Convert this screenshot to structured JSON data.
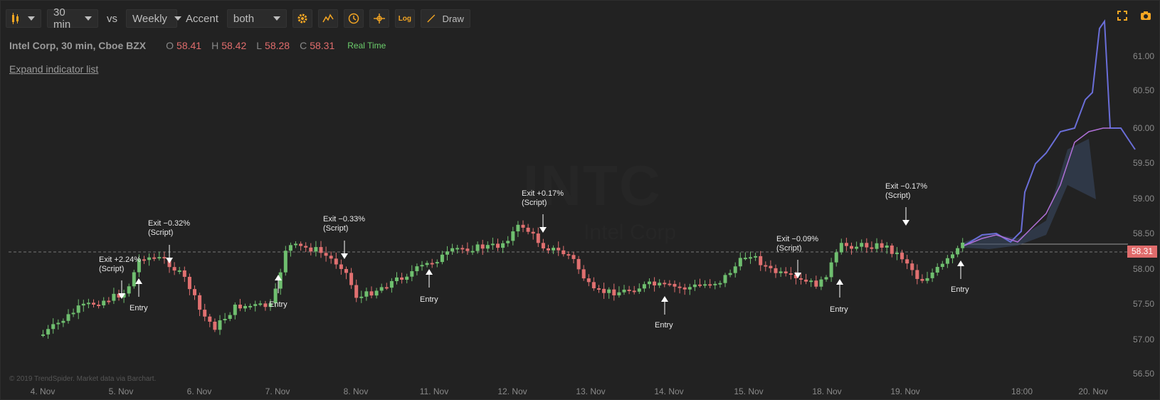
{
  "toolbar": {
    "interval": "30 min",
    "vs_label": "vs",
    "compare": "Weekly",
    "accent_label": "Accent",
    "accent_value": "both",
    "draw_label": "Draw",
    "log_label": "Log"
  },
  "legend": {
    "symbol": "Intel Corp, 30 min, Cboe BZX",
    "o_label": "O",
    "o": "58.41",
    "h_label": "H",
    "h": "58.42",
    "l_label": "L",
    "l": "58.28",
    "c_label": "C",
    "c": "58.31",
    "realtime": "Real Time"
  },
  "expand_label": "Expand indicator list",
  "watermark": {
    "ticker": "INTC",
    "name": "Intel Corp"
  },
  "copyright": "© 2019 TrendSpider. Market data via Barchart.",
  "current_price": "58.31",
  "colors": {
    "up": "#6fbf6f",
    "down": "#e07070",
    "forecast": "#6a6ed8",
    "forecast2": "#b070d8",
    "accent": "#f5a623"
  },
  "annotations": [
    {
      "label": "Exit +2.24%",
      "sub": "(Script)"
    },
    {
      "label": "Exit −0.32%",
      "sub": "(Script)"
    },
    {
      "label": "Exit −0.33%",
      "sub": "(Script)"
    },
    {
      "label": "Exit +0.17%",
      "sub": "(Script)"
    },
    {
      "label": "Exit −0.09%",
      "sub": "(Script)"
    },
    {
      "label": "Exit −0.17%",
      "sub": "(Script)"
    }
  ],
  "entry_label": "Entry",
  "chart_data": {
    "type": "candlestick",
    "y_ticks": [
      "61.00",
      "60.50",
      "60.00",
      "59.50",
      "59.00",
      "58.50",
      "58.00",
      "57.50",
      "57.00",
      "56.50"
    ],
    "x_ticks": [
      "4. Nov",
      "5. Nov",
      "6. Nov",
      "7. Nov",
      "8. Nov",
      "11. Nov",
      "12. Nov",
      "13. Nov",
      "14. Nov",
      "15. Nov",
      "18. Nov",
      "19. Nov",
      "18:00",
      "20. Nov"
    ],
    "ylim": [
      56.5,
      61.2
    ]
  }
}
